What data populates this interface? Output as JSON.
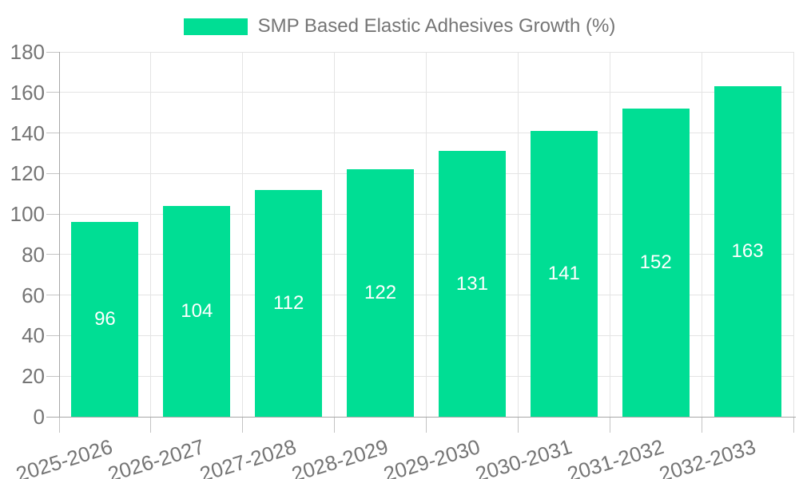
{
  "colors": {
    "bar": "#00DE94",
    "value_label": "#ffffff",
    "axis_text": "#757575",
    "grid": "#e4e4e4",
    "axis_line": "#a8a8a8",
    "tick": "#c4c4c4",
    "background": "#ffffff"
  },
  "chart_data": {
    "type": "bar",
    "title": "SMP Based Elastic Adhesives Growth (%)",
    "categories": [
      "2025-2026",
      "2026-2027",
      "2027-2028",
      "2028-2029",
      "2029-2030",
      "2030-2031",
      "2031-2032",
      "2032-2033"
    ],
    "series": [
      {
        "name": "SMP Based Elastic Adhesives Growth (%)",
        "values": [
          96,
          104,
          112,
          122,
          131,
          141,
          152,
          163
        ]
      }
    ],
    "xlabel": "",
    "ylabel": "",
    "ylim": [
      0,
      180
    ],
    "ytick_step": 20,
    "ytick_labels": [
      "0",
      "20",
      "40",
      "60",
      "80",
      "100",
      "120",
      "140",
      "160",
      "180"
    ],
    "grid": true,
    "legend_position": "top",
    "value_labels_shown": true,
    "value_label_position": "center"
  }
}
